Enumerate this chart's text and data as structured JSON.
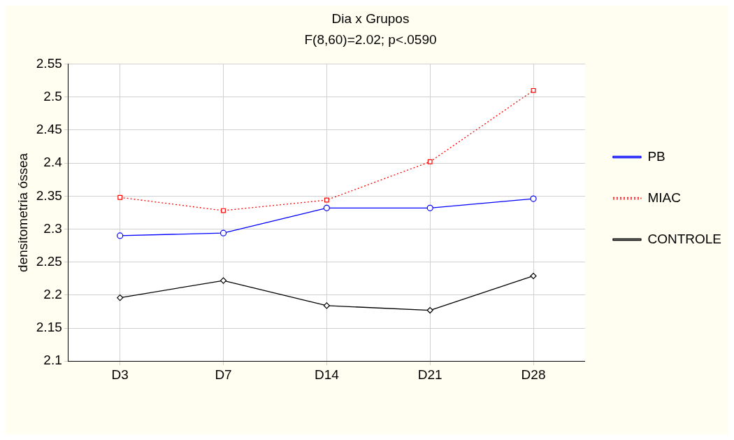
{
  "chart_data": {
    "type": "line",
    "title": "Dia x Grupos",
    "subtitle": "F(8,60)=2.02; p<.0590",
    "ylabel": "densitometria óssea",
    "categories": [
      "D3",
      "D7",
      "D14",
      "D21",
      "D28"
    ],
    "series": [
      {
        "name": "PB",
        "color": "#0000ff",
        "marker": "circle",
        "line_style": "solid",
        "values": [
          2.29,
          2.294,
          2.332,
          2.332,
          2.346
        ]
      },
      {
        "name": "MIAC",
        "color": "#ff0000",
        "marker": "square",
        "line_style": "dotted",
        "values": [
          2.348,
          2.328,
          2.344,
          2.402,
          2.51
        ]
      },
      {
        "name": "CONTROLE",
        "color": "#000000",
        "marker": "diamond",
        "line_style": "solid",
        "values": [
          2.196,
          2.222,
          2.184,
          2.177,
          2.229
        ]
      }
    ],
    "ylim": [
      2.1,
      2.55
    ],
    "yticks": [
      2.1,
      2.15,
      2.2,
      2.25,
      2.3,
      2.35,
      2.4,
      2.45,
      2.5,
      2.55
    ],
    "grid": true,
    "legend": "right"
  }
}
